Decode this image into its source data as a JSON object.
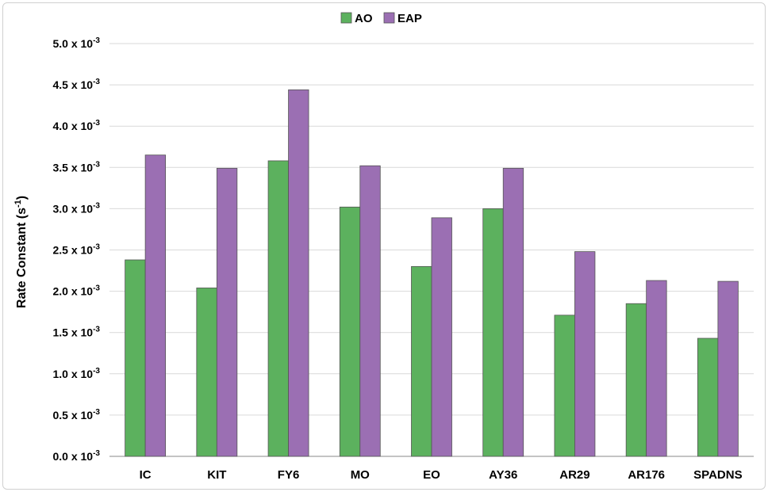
{
  "chart_data": {
    "type": "bar",
    "categories": [
      "IC",
      "KIT",
      "FY6",
      "MO",
      "EO",
      "AY36",
      "AR29",
      "AR176",
      "SPADNS"
    ],
    "series": [
      {
        "name": "AO",
        "color": "#5cb15e",
        "values": [
          0.00238,
          0.00204,
          0.00358,
          0.00302,
          0.0023,
          0.003,
          0.00171,
          0.00185,
          0.00143
        ]
      },
      {
        "name": "EAP",
        "color": "#9b6fb3",
        "values": [
          0.00365,
          0.00349,
          0.00444,
          0.00352,
          0.00289,
          0.00349,
          0.00248,
          0.00213,
          0.00212
        ]
      }
    ],
    "ylabel_main": "Rate Constant (s",
    "ylabel_sup": "-1",
    "ylabel_end": ")",
    "ylim": [
      0,
      0.005
    ],
    "yticks": [
      {
        "value": 0.0,
        "mantissa": "0.0 x 10",
        "exp": "-3"
      },
      {
        "value": 0.0005,
        "mantissa": "0.5 x 10",
        "exp": "-3"
      },
      {
        "value": 0.001,
        "mantissa": "1.0 x 10",
        "exp": "-3"
      },
      {
        "value": 0.0015,
        "mantissa": "1.5 x 10",
        "exp": "-3"
      },
      {
        "value": 0.002,
        "mantissa": "2.0 x 10",
        "exp": "-3"
      },
      {
        "value": 0.0025,
        "mantissa": "2.5 x 10",
        "exp": "-3"
      },
      {
        "value": 0.003,
        "mantissa": "3.0 x 10",
        "exp": "-3"
      },
      {
        "value": 0.0035,
        "mantissa": "3.5 x 10",
        "exp": "-3"
      },
      {
        "value": 0.004,
        "mantissa": "4.0 x 10",
        "exp": "-3"
      },
      {
        "value": 0.0045,
        "mantissa": "4.5 x 10",
        "exp": "-3"
      },
      {
        "value": 0.005,
        "mantissa": "5.0 x 10",
        "exp": "-3"
      }
    ],
    "grid": true,
    "legend_position": "top-center"
  }
}
